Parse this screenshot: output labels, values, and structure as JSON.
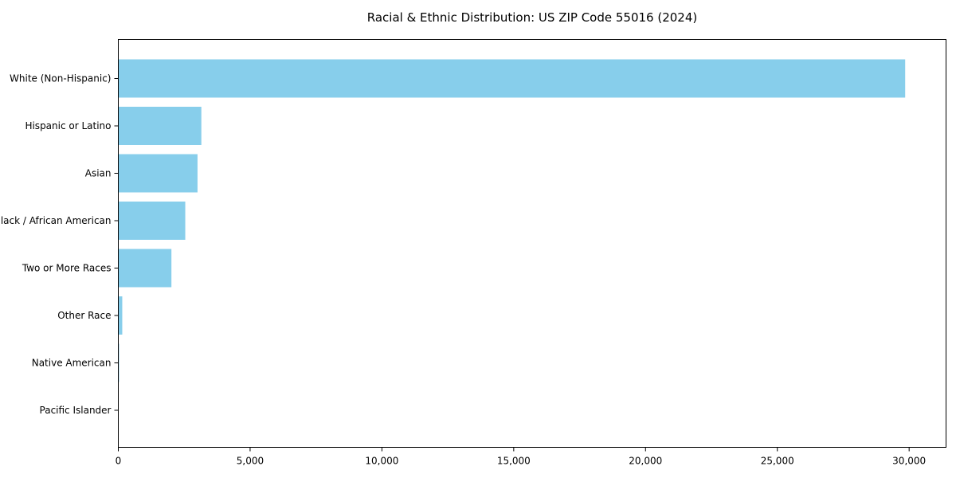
{
  "window": {
    "background_color": "#ffffff"
  },
  "chart_data": {
    "type": "bar",
    "orientation": "horizontal",
    "title": "Racial & Ethnic Distribution: US ZIP Code 55016 (2024)",
    "categories": [
      "White (Non-Hispanic)",
      "Hispanic or Latino",
      "Asian",
      "Black / African American",
      "Two or More Races",
      "Other Race",
      "Native American",
      "Pacific Islander"
    ],
    "values": [
      29850,
      3150,
      3005,
      2540,
      2015,
      150,
      30,
      10
    ],
    "xlabel": "",
    "ylabel": "",
    "xlim": [
      0,
      31400
    ],
    "xtick_values": [
      0,
      5000,
      10000,
      15000,
      20000,
      25000,
      30000
    ],
    "xtick_labels": [
      "0",
      "5,000",
      "10,000",
      "15,000",
      "20,000",
      "25,000",
      "30,000"
    ],
    "bar_color": "#87CEEB",
    "axis_color": "#000000",
    "text_color": "#000000",
    "grid": false,
    "legend": null,
    "legend_position": "none"
  }
}
